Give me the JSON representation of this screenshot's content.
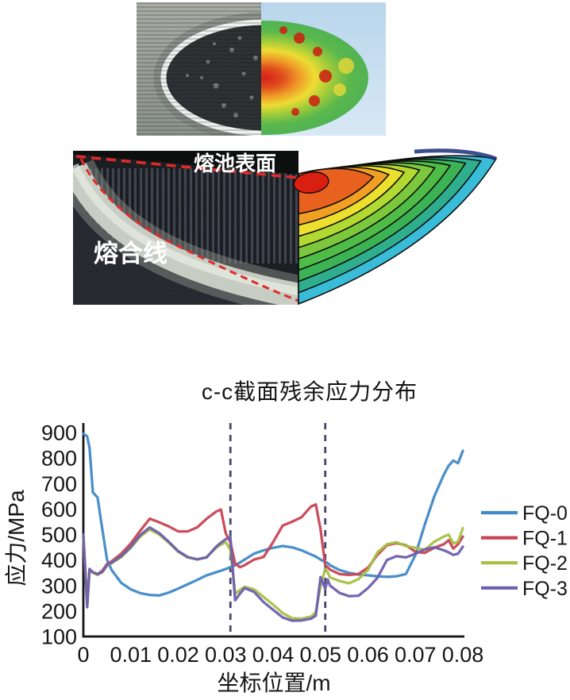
{
  "annotations": {
    "pool_surface_label": "熔池表面",
    "fusion_line_label": "熔合线"
  },
  "chart": {
    "title": "c-c截面残余应力分布",
    "xlabel": "坐标位置/m",
    "ylabel": "应力/MPa"
  },
  "colors": {
    "axis": "#151515",
    "dashed_marker": "#47476b",
    "contour_palette_outer_to_inner": [
      "#38bcd8",
      "#2fae8e",
      "#3bb254",
      "#4fbc48",
      "#7cc83c",
      "#b2d832",
      "#ecdf2e",
      "#f2a024",
      "#e8611e"
    ],
    "contour_core": "#d81f12"
  },
  "chart_data": {
    "type": "line",
    "title": "c-c截面残余应力分布",
    "xlabel": "坐标位置/m",
    "ylabel": "应力/MPa",
    "xlim": [
      0,
      0.08
    ],
    "ylim": [
      100,
      900
    ],
    "xticks": [
      0,
      0.01,
      0.02,
      0.03,
      0.04,
      0.05,
      0.06,
      0.07,
      0.08
    ],
    "xtick_labels": [
      "0",
      "0.01",
      "0.02",
      "0.03",
      "0.04",
      "0.05",
      "0.06",
      "0.07",
      "0.08"
    ],
    "yticks": [
      100,
      200,
      300,
      400,
      500,
      600,
      700,
      800,
      900
    ],
    "grid": false,
    "legend_position": "right",
    "vlines": {
      "x": [
        0.031,
        0.051
      ],
      "style": "dashed",
      "color": "#47476b"
    },
    "x": [
      0,
      0.0008,
      0.0013,
      0.002,
      0.003,
      0.004,
      0.005,
      0.006,
      0.008,
      0.01,
      0.012,
      0.014,
      0.016,
      0.018,
      0.02,
      0.022,
      0.024,
      0.026,
      0.028,
      0.029,
      0.03,
      0.031,
      0.032,
      0.033,
      0.034,
      0.036,
      0.038,
      0.04,
      0.042,
      0.044,
      0.046,
      0.048,
      0.049,
      0.05,
      0.051,
      0.0515,
      0.052,
      0.054,
      0.056,
      0.058,
      0.06,
      0.062,
      0.064,
      0.066,
      0.068,
      0.07,
      0.072,
      0.074,
      0.076,
      0.077,
      0.078,
      0.079,
      0.08
    ],
    "series": [
      {
        "name": "FQ-0",
        "color": "#4189c7",
        "values": [
          895,
          885,
          840,
          665,
          645,
          520,
          400,
          360,
          310,
          285,
          270,
          263,
          261,
          272,
          288,
          305,
          322,
          340,
          352,
          358,
          365,
          371,
          380,
          390,
          402,
          425,
          438,
          448,
          455,
          450,
          438,
          422,
          413,
          402,
          392,
          388,
          380,
          361,
          350,
          343,
          340,
          336,
          334,
          336,
          345,
          420,
          540,
          650,
          735,
          770,
          790,
          780,
          828
        ]
      },
      {
        "name": "FQ-1",
        "color": "#c94453",
        "values": [
          490,
          230,
          360,
          352,
          345,
          358,
          385,
          395,
          425,
          465,
          515,
          562,
          548,
          532,
          512,
          512,
          528,
          562,
          590,
          598,
          505,
          470,
          386,
          372,
          380,
          402,
          412,
          470,
          535,
          550,
          568,
          610,
          618,
          520,
          380,
          372,
          362,
          345,
          342,
          345,
          370,
          420,
          458,
          466,
          458,
          432,
          428,
          448,
          462,
          478,
          445,
          462,
          492
        ]
      },
      {
        "name": "FQ-2",
        "color": "#a6c144",
        "values": [
          495,
          225,
          362,
          350,
          342,
          352,
          378,
          388,
          412,
          448,
          492,
          520,
          500,
          468,
          432,
          410,
          402,
          412,
          448,
          460,
          470,
          440,
          268,
          282,
          295,
          285,
          255,
          225,
          192,
          172,
          170,
          178,
          195,
          300,
          365,
          352,
          332,
          318,
          309,
          325,
          361,
          430,
          462,
          470,
          455,
          448,
          440,
          472,
          492,
          500,
          465,
          472,
          525
        ]
      },
      {
        "name": "FQ-3",
        "color": "#6e5fae",
        "values": [
          500,
          215,
          365,
          352,
          344,
          354,
          380,
          390,
          415,
          452,
          498,
          528,
          505,
          472,
          435,
          412,
          403,
          410,
          452,
          468,
          482,
          490,
          242,
          268,
          290,
          275,
          235,
          205,
          175,
          162,
          163,
          170,
          182,
          333,
          287,
          324,
          300,
          271,
          258,
          260,
          290,
          330,
          400,
          415,
          410,
          425,
          442,
          450,
          438,
          430,
          420,
          425,
          452
        ]
      }
    ]
  }
}
